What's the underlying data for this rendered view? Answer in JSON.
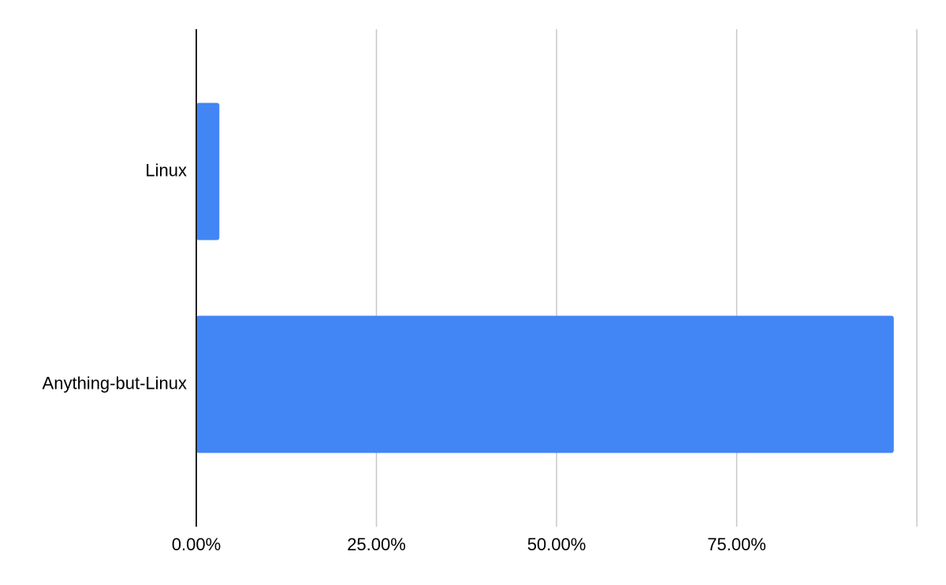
{
  "chart_data": {
    "type": "hbar",
    "categories": [
      "Linux",
      "Anything-but-Linux"
    ],
    "values": [
      3.2,
      96.8
    ],
    "color": "#4285f4",
    "xlim": [
      0,
      100
    ],
    "xticks": [
      {
        "value": 0,
        "label": "0.00%"
      },
      {
        "value": 25,
        "label": "25.00%"
      },
      {
        "value": 50,
        "label": "50.00%"
      },
      {
        "value": 75,
        "label": "75.00%"
      }
    ],
    "grid": true
  }
}
